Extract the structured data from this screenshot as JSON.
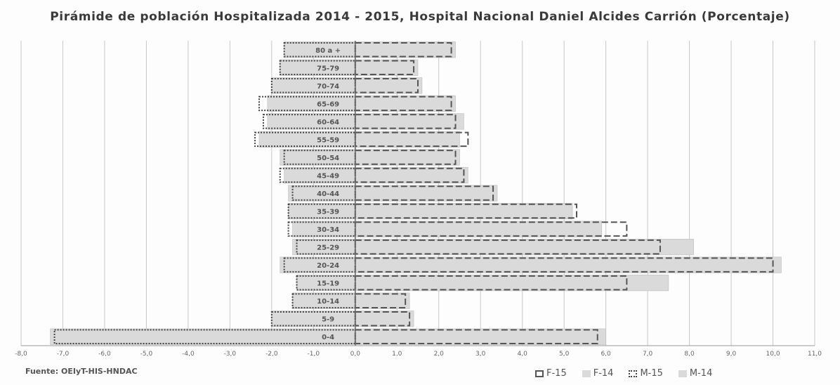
{
  "chart_data": {
    "type": "bar",
    "orientation": "horizontal",
    "title": "Pirámide de población Hospitalizada 2014 - 2015, Hospital Nacional Daniel Alcides Carrión (Porcentaje)",
    "source": "Fuente: OEIyT-HIS-HNDAC",
    "categories": [
      "0-4",
      "5-9",
      "10-14",
      "15-19",
      "20-24",
      "25-29",
      "30-34",
      "35-39",
      "40-44",
      "45-49",
      "50-54",
      "55-59",
      "60-64",
      "65-69",
      "70-74",
      "75-79",
      "80 a +"
    ],
    "xlim": [
      -8,
      11
    ],
    "xticks": [
      -8,
      -7,
      -6,
      -5,
      -4,
      -3,
      -2,
      -1,
      0,
      1,
      2,
      3,
      4,
      5,
      6,
      7,
      8,
      9,
      10,
      11
    ],
    "xtick_labels": [
      "-8,0",
      "-7,0",
      "-6,0",
      "-5,0",
      "-4,0",
      "-3,0",
      "-2,0",
      "-1,0",
      "0,0",
      "1,0",
      "2,0",
      "3,0",
      "4,0",
      "5,0",
      "6,0",
      "7,0",
      "8,0",
      "9,0",
      "10,0",
      "11,0"
    ],
    "grid": true,
    "legend_position": "bottom-right",
    "series": [
      {
        "name": "F-15",
        "side": "right",
        "style": "dashed",
        "color": "#555555",
        "values": [
          5.8,
          1.3,
          1.2,
          6.5,
          10.0,
          7.3,
          6.5,
          5.3,
          3.3,
          2.6,
          2.4,
          2.7,
          2.4,
          2.3,
          1.5,
          1.4,
          2.3
        ]
      },
      {
        "name": "F-14",
        "side": "right",
        "style": "solid",
        "color": "#dadada",
        "values": [
          6.0,
          1.4,
          1.3,
          7.5,
          10.2,
          8.1,
          5.9,
          5.2,
          3.4,
          2.7,
          2.5,
          2.5,
          2.6,
          2.4,
          1.6,
          1.5,
          2.4
        ]
      },
      {
        "name": "M-15",
        "side": "left",
        "style": "dotted",
        "color": "#444444",
        "values": [
          7.2,
          2.0,
          1.5,
          1.4,
          1.7,
          1.4,
          1.6,
          1.6,
          1.5,
          1.8,
          1.7,
          2.4,
          2.2,
          2.3,
          2.0,
          1.8,
          1.7
        ]
      },
      {
        "name": "M-14",
        "side": "left",
        "style": "solid",
        "color": "#dadada",
        "values": [
          7.3,
          2.0,
          1.5,
          1.4,
          1.8,
          1.5,
          1.5,
          1.6,
          1.6,
          1.7,
          1.8,
          2.3,
          2.1,
          2.1,
          2.0,
          1.8,
          1.7
        ]
      }
    ]
  },
  "legend": {
    "f15": "F-15",
    "f14": "F-14",
    "m15": "M-15",
    "m14": "M-14"
  }
}
